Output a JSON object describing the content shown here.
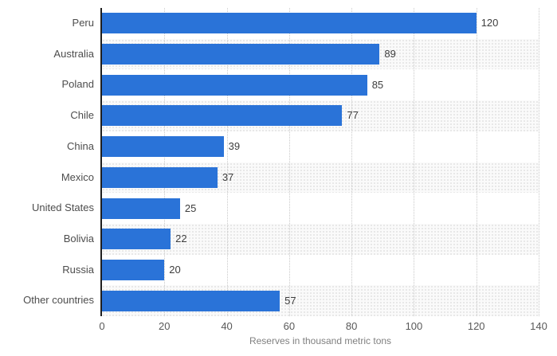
{
  "chart_data": {
    "type": "bar",
    "orientation": "horizontal",
    "title": "",
    "categories": [
      "Peru",
      "Australia",
      "Poland",
      "Chile",
      "China",
      "Mexico",
      "United States",
      "Bolivia",
      "Russia",
      "Other countries"
    ],
    "values": [
      120,
      89,
      85,
      77,
      39,
      37,
      25,
      22,
      20,
      57
    ],
    "xlabel": "Reserves in thousand metric tons",
    "ylabel": "",
    "xlim": [
      0,
      140
    ],
    "xticks": [
      0,
      20,
      40,
      60,
      80,
      100,
      120,
      140
    ],
    "grid": "vertical-dotted",
    "row_stripes": "alternating, stippled on rows 2,4,6,8,10",
    "value_labels": "at end of each bar",
    "legend": "none"
  },
  "colors": {
    "bar": "#2a73d8",
    "axis_line": "#1f1f1f",
    "gridline": "#c9c9c9",
    "stripe_background": "#fafafa",
    "stripe_dot": "#e2e2e2",
    "category_label": "#4d4d4d",
    "value_label": "#3d3d3d",
    "tick_label": "#595959",
    "axis_title": "#808080",
    "background": "#ffffff"
  }
}
